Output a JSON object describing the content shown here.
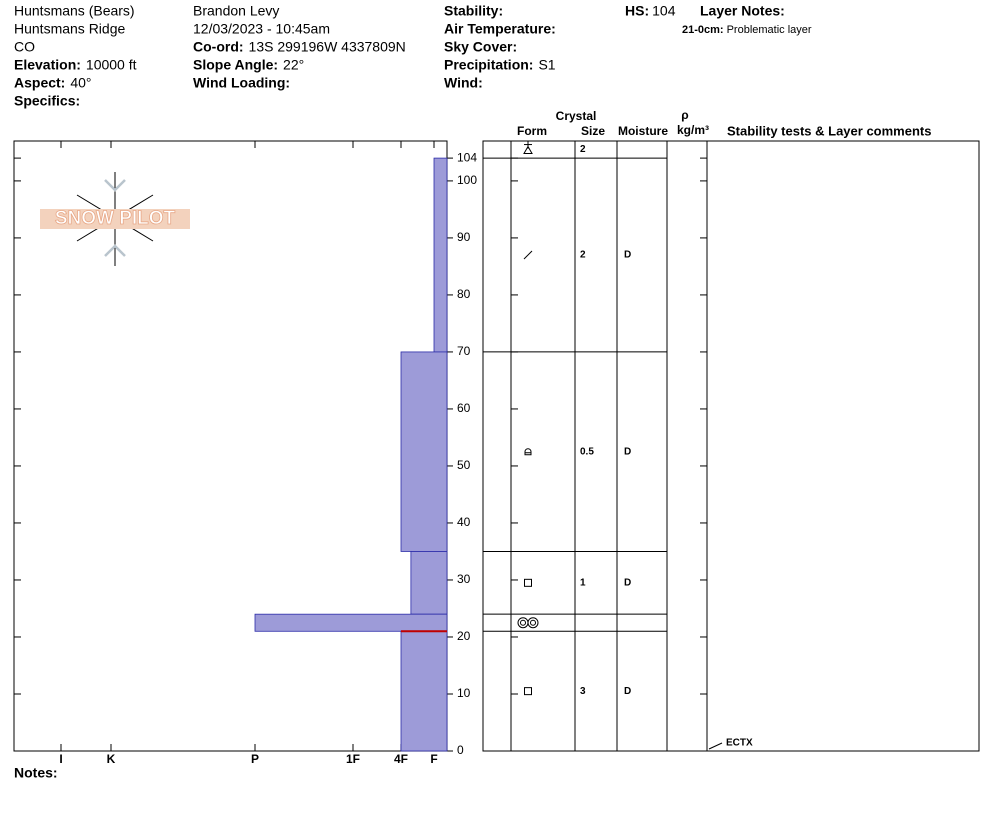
{
  "header": {
    "left": [
      {
        "text": "Huntsmans (Bears)"
      },
      {
        "text": "Huntsmans Ridge"
      },
      {
        "text": "CO"
      },
      {
        "label": "Elevation:",
        "value": "10000 ft"
      },
      {
        "label": "Aspect:",
        "value": "40°"
      },
      {
        "label": "Specifics:"
      }
    ],
    "middle": [
      {
        "text": "Brandon Levy"
      },
      {
        "text": "12/03/2023 - 10:45am"
      },
      {
        "label": "Co-ord:",
        "value": "13S 299196W 4337809N"
      },
      {
        "label": "Slope Angle:",
        "value": "22°"
      },
      {
        "label": "Wind Loading:"
      }
    ],
    "right": [
      {
        "label": "Stability:"
      },
      {
        "label": "Air Temperature:"
      },
      {
        "label": "Sky Cover:"
      },
      {
        "label": "Precipitation:",
        "value": "S1"
      },
      {
        "label": "Wind:"
      }
    ],
    "hs": {
      "label": "HS:",
      "value": 104
    },
    "layer_notes": {
      "title": "Layer Notes:",
      "items": [
        {
          "range": "21-0cm:",
          "text": "Problematic layer"
        }
      ]
    }
  },
  "logo": "SNOW PILOT",
  "profile": {
    "ylim": [
      0,
      107
    ],
    "yticks": [
      0,
      10,
      20,
      30,
      40,
      50,
      60,
      70,
      80,
      90,
      100,
      104
    ],
    "hardness_ticks": [
      {
        "value": 6,
        "label": "I"
      },
      {
        "value": 5,
        "label": "K"
      },
      {
        "value": 4,
        "label": "P"
      },
      {
        "value": 3,
        "label": "1F"
      },
      {
        "value": 2,
        "label": "4F"
      },
      {
        "value": 1,
        "label": "F"
      }
    ],
    "surface": {
      "size": 2
    },
    "layers": [
      {
        "top": 104,
        "bottom": 70,
        "hardness": 1,
        "size": 2,
        "moisture": "D"
      },
      {
        "top": 70,
        "bottom": 35,
        "hardness": 2,
        "size": 0.5,
        "moisture": "D"
      },
      {
        "top": 35,
        "bottom": 24,
        "hardness": 1.7,
        "size": 1,
        "moisture": "D"
      },
      {
        "top": 24,
        "bottom": 21,
        "hardness": 4
      },
      {
        "top": 21,
        "bottom": 0,
        "hardness": 2,
        "size": 3,
        "moisture": "D"
      }
    ]
  },
  "columns": {
    "crystal": "Crystal",
    "form": "Form",
    "size": "Size",
    "moisture": "Moisture",
    "rho": "ρ",
    "density_unit": "kg/m³",
    "comments": "Stability tests & Layer comments"
  },
  "tests": [
    {
      "result": "ECTX",
      "height": 0
    }
  ],
  "notes": "Notes:"
}
